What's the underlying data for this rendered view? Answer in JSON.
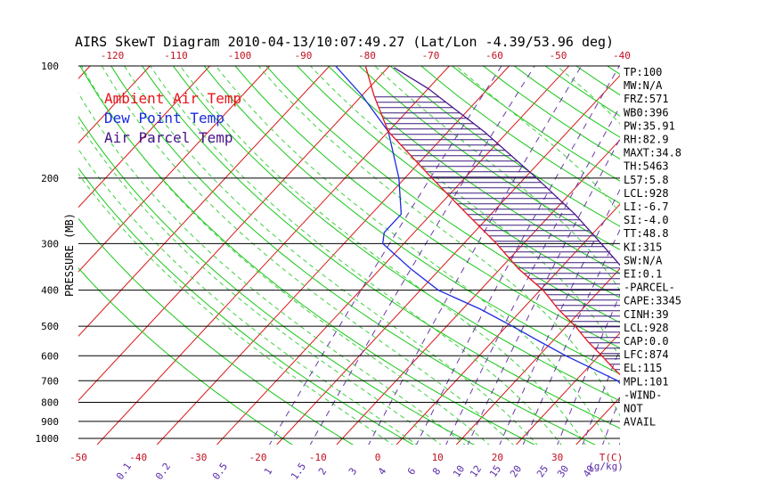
{
  "title": "AIRS SkewT Diagram 2010-04-13/10:07:49.27 (Lat/Lon -4.39/53.96 deg)",
  "legend": [
    {
      "label": "Ambient Air Temp",
      "color": "#e8141c"
    },
    {
      "label": "Dew Point Temp",
      "color": "#1c2ce0"
    },
    {
      "label": "Air Parcel Temp",
      "color": "#4a148c"
    }
  ],
  "colors": {
    "isotherm": "#d81818",
    "dry_adiabat": "#18c818",
    "moist_adiabat": "#40d040",
    "mixing_ratio": "#6a3aa8",
    "isobar": "#000000",
    "hatch": "#3c1c7a"
  },
  "chart_data": {
    "type": "line",
    "ylabel": "PRESSURE (MB)",
    "y_scale": "log",
    "ylim": [
      1000,
      100
    ],
    "pressure_ticks": [
      "100",
      "200",
      "300",
      "400",
      "500",
      "600",
      "700",
      "800",
      "900",
      "1000"
    ],
    "bottom_temp_ticks": [
      "-50",
      "-40",
      "-30",
      "-20",
      "-10",
      "0",
      "10",
      "20",
      "30"
    ],
    "bottom_temp_unit": "T(C)",
    "top_temp_ticks": [
      "-120",
      "-110",
      "-100",
      "-90",
      "-80",
      "-70",
      "-60",
      "-50",
      "-40"
    ],
    "mixing_ratio_ticks": [
      "0.1",
      "0.2",
      "0.5",
      "1",
      "1.5",
      "2",
      "3",
      "4",
      "6",
      "8",
      "10",
      "12",
      "15",
      "20",
      "25",
      "30",
      "40"
    ],
    "mixing_ratio_unit": "(g/kg)",
    "series": [
      {
        "name": "Ambient Air Temp",
        "pressure": [
          1000,
          950,
          900,
          850,
          800,
          750,
          700,
          650,
          600,
          550,
          500,
          450,
          400,
          350,
          300,
          250,
          200,
          150,
          120,
          100
        ],
        "temp": [
          30.5,
          26.5,
          22.4,
          19,
          15.5,
          12,
          8.5,
          4.5,
          0.5,
          -4,
          -8.5,
          -14,
          -19.5,
          -27,
          -34.5,
          -44,
          -55.5,
          -70,
          -78,
          -84
        ]
      },
      {
        "name": "Dew Point Temp",
        "pressure": [
          1000,
          950,
          900,
          850,
          800,
          750,
          700,
          650,
          600,
          550,
          500,
          450,
          400,
          350,
          300,
          280,
          250,
          200,
          150,
          120,
          100
        ],
        "temp": [
          23.5,
          22.5,
          20.5,
          17.5,
          14,
          10.5,
          7,
          1,
          -5.5,
          -12,
          -19,
          -27,
          -37,
          -45,
          -53.5,
          -55,
          -55,
          -61,
          -70,
          -80,
          -89
        ]
      },
      {
        "name": "Air Parcel Temp",
        "pressure": [
          1000,
          928,
          850,
          800,
          700,
          600,
          500,
          400,
          350,
          300,
          250,
          200,
          150,
          115,
          101
        ],
        "temp": [
          30.5,
          23.3,
          21,
          19.5,
          16,
          12,
          6,
          -3.5,
          -9.5,
          -17,
          -26,
          -38,
          -54,
          -70,
          -79
        ]
      }
    ]
  },
  "indices": [
    "TP:100",
    "MW:N/A",
    "FRZ:571",
    "WB0:396",
    "PW:35.91",
    "RH:82.9",
    "MAXT:34.8",
    "TH:5463",
    "L57:5.8",
    "LCL:928",
    "LI:-6.7",
    "SI:-4.0",
    "TT:48.8",
    "KI:315",
    "SW:N/A",
    "EI:0.1",
    "-PARCEL-",
    "CAPE:3345",
    "CINH:39",
    "LCL:928",
    "CAP:0.0",
    "LFC:874",
    "EL:115",
    "MPL:101",
    "-WIND-",
    "NOT",
    "AVAIL"
  ]
}
